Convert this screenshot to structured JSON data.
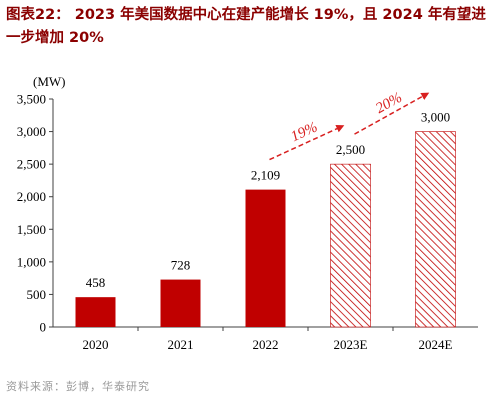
{
  "title": "图表22： 2023 年美国数据中心在建产能增长 19%，且 2024 年有望进一步增加 20%",
  "source": "资料来源：彭博，华泰研究",
  "colors": {
    "bar": "#c00000",
    "hatch": "#c00000",
    "arrow": "#d82020",
    "title": "#8b0000",
    "axis": "#404040",
    "text": "#000000"
  },
  "chart_data": {
    "type": "bar",
    "unit_label": "(MW)",
    "categories": [
      "2020",
      "2021",
      "2022",
      "2023E",
      "2024E"
    ],
    "values": [
      458,
      728,
      2109,
      2500,
      3000
    ],
    "value_labels": [
      "458",
      "728",
      "2,109",
      "2,500",
      "3,000"
    ],
    "estimated": [
      false,
      false,
      false,
      true,
      true
    ],
    "ylim": [
      0,
      3500
    ],
    "yticks": [
      0,
      500,
      1000,
      1500,
      2000,
      2500,
      3000,
      3500
    ],
    "ytick_labels": [
      "0",
      "500",
      "1,000",
      "1,500",
      "2,000",
      "2,500",
      "3,000",
      "3,500"
    ],
    "grid": false,
    "annotations": [
      {
        "text": "19%",
        "from": "2022",
        "to": "2023E"
      },
      {
        "text": "20%",
        "from": "2023E",
        "to": "2024E"
      }
    ]
  }
}
